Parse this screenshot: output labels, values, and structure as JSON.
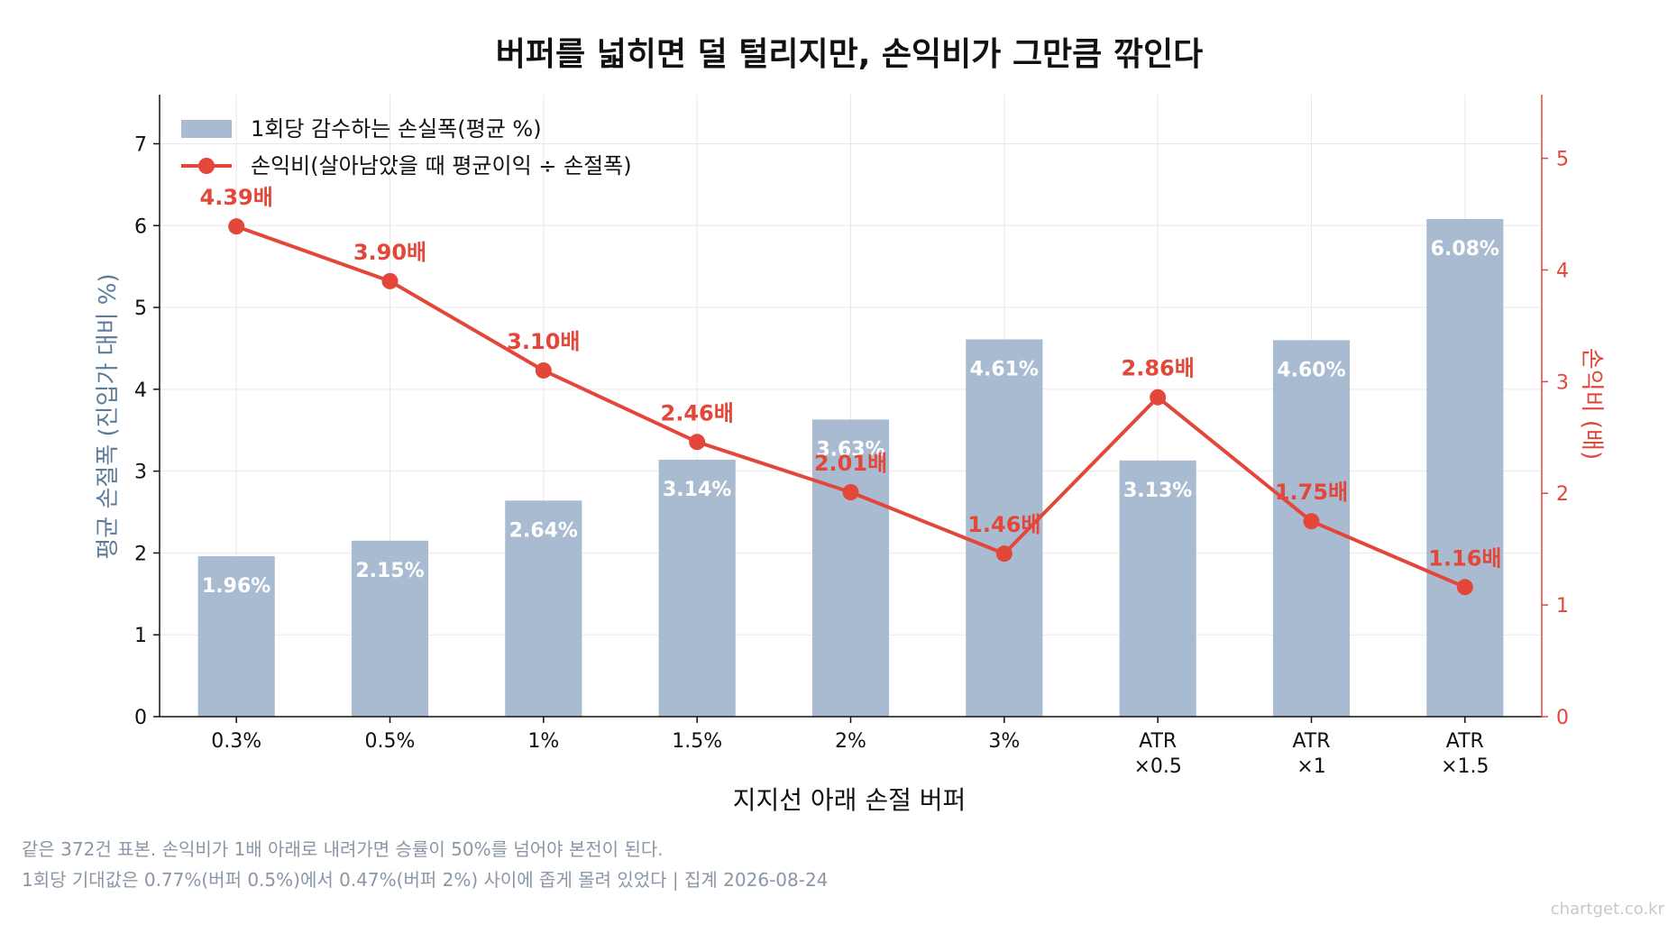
{
  "chart_data": {
    "type": "bar+line",
    "title": "버퍼를 넓히면 덜 털리지만, 손익비가 그만큼 깎인다",
    "xlabel": "지지선 아래 손절 버퍼",
    "ylabel_left": "평균 손절폭 (진입가 대비 %)",
    "ylabel_right": "손익비 (배)",
    "categories": [
      [
        "0.3%"
      ],
      [
        "0.5%"
      ],
      [
        "1%"
      ],
      [
        "1.5%"
      ],
      [
        "2%"
      ],
      [
        "3%"
      ],
      [
        "ATR",
        "×0.5"
      ],
      [
        "ATR",
        "×1"
      ],
      [
        "ATR",
        "×1.5"
      ]
    ],
    "ylim_left": [
      0,
      7.6
    ],
    "ylim_right": [
      0,
      5.57
    ],
    "yticks_left": [
      "0",
      "1",
      "2",
      "3",
      "4",
      "5",
      "6",
      "7"
    ],
    "yticks_right": [
      "0",
      "1",
      "2",
      "3",
      "4",
      "5"
    ],
    "grid": true,
    "legend_position": "top-left",
    "series": [
      {
        "name": "1회당 감수하는 손실폭(평균 %)",
        "type": "bar",
        "axis": "left",
        "color": "#a9bbd0",
        "values": [
          1.96,
          2.15,
          2.64,
          3.14,
          3.63,
          4.61,
          3.13,
          4.6,
          6.08
        ],
        "labels": [
          "1.96%",
          "2.15%",
          "2.64%",
          "3.14%",
          "3.63%",
          "4.61%",
          "3.13%",
          "4.60%",
          "6.08%"
        ]
      },
      {
        "name": "손익비(살아남았을 때 평균이익 ÷ 손절폭)",
        "type": "line",
        "axis": "right",
        "color": "#e2473a",
        "values": [
          4.39,
          3.9,
          3.1,
          2.46,
          2.01,
          1.46,
          2.86,
          1.75,
          1.16
        ],
        "labels": [
          "4.39배",
          "3.90배",
          "3.10배",
          "2.46배",
          "2.01배",
          "1.46배",
          "2.86배",
          "1.75배",
          "1.16배"
        ]
      }
    ],
    "colors": {
      "left_axis_label": "#5c7c99",
      "right_axis": "#e2473a",
      "bar_label": "#ffffff"
    }
  },
  "footnotes": [
    "같은 372건 표본. 손익비가 1배 아래로 내려가면 승률이 50%를 넘어야 본전이 된다.",
    "1회당 기대값은 0.77%(버퍼 0.5%)에서 0.47%(버퍼 2%) 사이에 좁게 몰려 있었다  |  집계 2026-08-24"
  ],
  "watermark": "chartget.co.kr"
}
